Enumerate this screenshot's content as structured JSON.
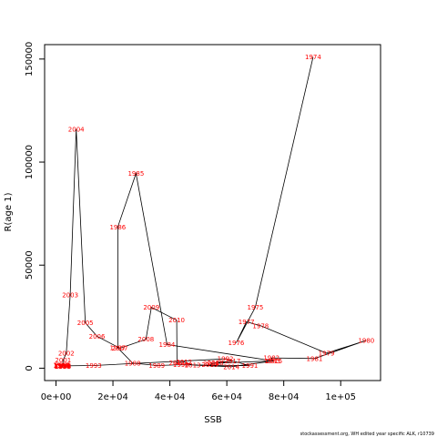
{
  "chart_data": {
    "type": "line",
    "title": "",
    "xlabel": "SSB",
    "ylabel": "R(age 1)",
    "xlim": [
      -4000,
      114000
    ],
    "ylim": [
      -6000,
      157000
    ],
    "x_ticks": [
      0,
      20000,
      40000,
      60000,
      80000,
      100000
    ],
    "x_tick_labels": [
      "0e+00",
      "2e+04",
      "4e+04",
      "6e+04",
      "8e+04",
      "1e+05"
    ],
    "y_ticks": [
      0,
      50000,
      100000,
      150000
    ],
    "y_tick_labels": [
      "0",
      "50000",
      "100000",
      "150000"
    ],
    "grid": false,
    "line_color": "#000000",
    "label_color": "#ff0000",
    "points": [
      {
        "year": "1974",
        "x": 90300,
        "y": 151000
      },
      {
        "year": "1975",
        "x": 70000,
        "y": 29500
      },
      {
        "year": "1976",
        "x": 63300,
        "y": 12300
      },
      {
        "year": "1977",
        "x": 66900,
        "y": 22500
      },
      {
        "year": "1978",
        "x": 71900,
        "y": 20600
      },
      {
        "year": "1979",
        "x": 95000,
        "y": 7300
      },
      {
        "year": "1980",
        "x": 109000,
        "y": 13500
      },
      {
        "year": "1981",
        "x": 90800,
        "y": 4700
      },
      {
        "year": "1982",
        "x": 75700,
        "y": 5000
      },
      {
        "year": "1983",
        "x": 76000,
        "y": 3600
      },
      {
        "year": "1984",
        "x": 39000,
        "y": 11500
      },
      {
        "year": "1985",
        "x": 28100,
        "y": 94500
      },
      {
        "year": "1986",
        "x": 21700,
        "y": 68500
      },
      {
        "year": "1987",
        "x": 21700,
        "y": 9800
      },
      {
        "year": "1988",
        "x": 26900,
        "y": 2500
      },
      {
        "year": "1989",
        "x": 35400,
        "y": 1300
      },
      {
        "year": "1990",
        "x": 43900,
        "y": 1700
      },
      {
        "year": "1991",
        "x": 68100,
        "y": 1200
      },
      {
        "year": "1992",
        "x": 59500,
        "y": 4500
      },
      {
        "year": "1993",
        "x": 13200,
        "y": 1300
      },
      {
        "year": "1994",
        "x": 2200,
        "y": 1100
      },
      {
        "year": "1995",
        "x": 1800,
        "y": 1500
      },
      {
        "year": "1996",
        "x": 2500,
        "y": 900
      },
      {
        "year": "1997",
        "x": 2000,
        "y": 1200
      },
      {
        "year": "1998",
        "x": 2300,
        "y": 800
      },
      {
        "year": "1999",
        "x": 2100,
        "y": 1000
      },
      {
        "year": "2000",
        "x": 2400,
        "y": 1400
      },
      {
        "year": "2001",
        "x": 2500,
        "y": 3900
      },
      {
        "year": "2002",
        "x": 3600,
        "y": 7200
      },
      {
        "year": "2003",
        "x": 5000,
        "y": 35500
      },
      {
        "year": "2004",
        "x": 7100,
        "y": 116000
      },
      {
        "year": "2005",
        "x": 10300,
        "y": 22000
      },
      {
        "year": "2006",
        "x": 14400,
        "y": 15500
      },
      {
        "year": "2007",
        "x": 22400,
        "y": 9700
      },
      {
        "year": "2008",
        "x": 31600,
        "y": 14000
      },
      {
        "year": "2009",
        "x": 33500,
        "y": 29500
      },
      {
        "year": "2010",
        "x": 42400,
        "y": 23300
      },
      {
        "year": "2011",
        "x": 42500,
        "y": 2600
      },
      {
        "year": "2012",
        "x": 45000,
        "y": 3000
      },
      {
        "year": "2013",
        "x": 48000,
        "y": 1500
      },
      {
        "year": "2014",
        "x": 61600,
        "y": 700
      },
      {
        "year": "2015",
        "x": 76700,
        "y": 3600
      },
      {
        "year": "2016",
        "x": 54500,
        "y": 2300
      },
      {
        "year": "2017",
        "x": 62000,
        "y": 3400
      },
      {
        "year": "2018",
        "x": 56000,
        "y": 2700
      },
      {
        "year": "2019",
        "x": 54000,
        "y": 1700
      }
    ]
  },
  "footer": {
    "source_text": "stockassessment.org, WH edited year specific ALK, r10739"
  }
}
